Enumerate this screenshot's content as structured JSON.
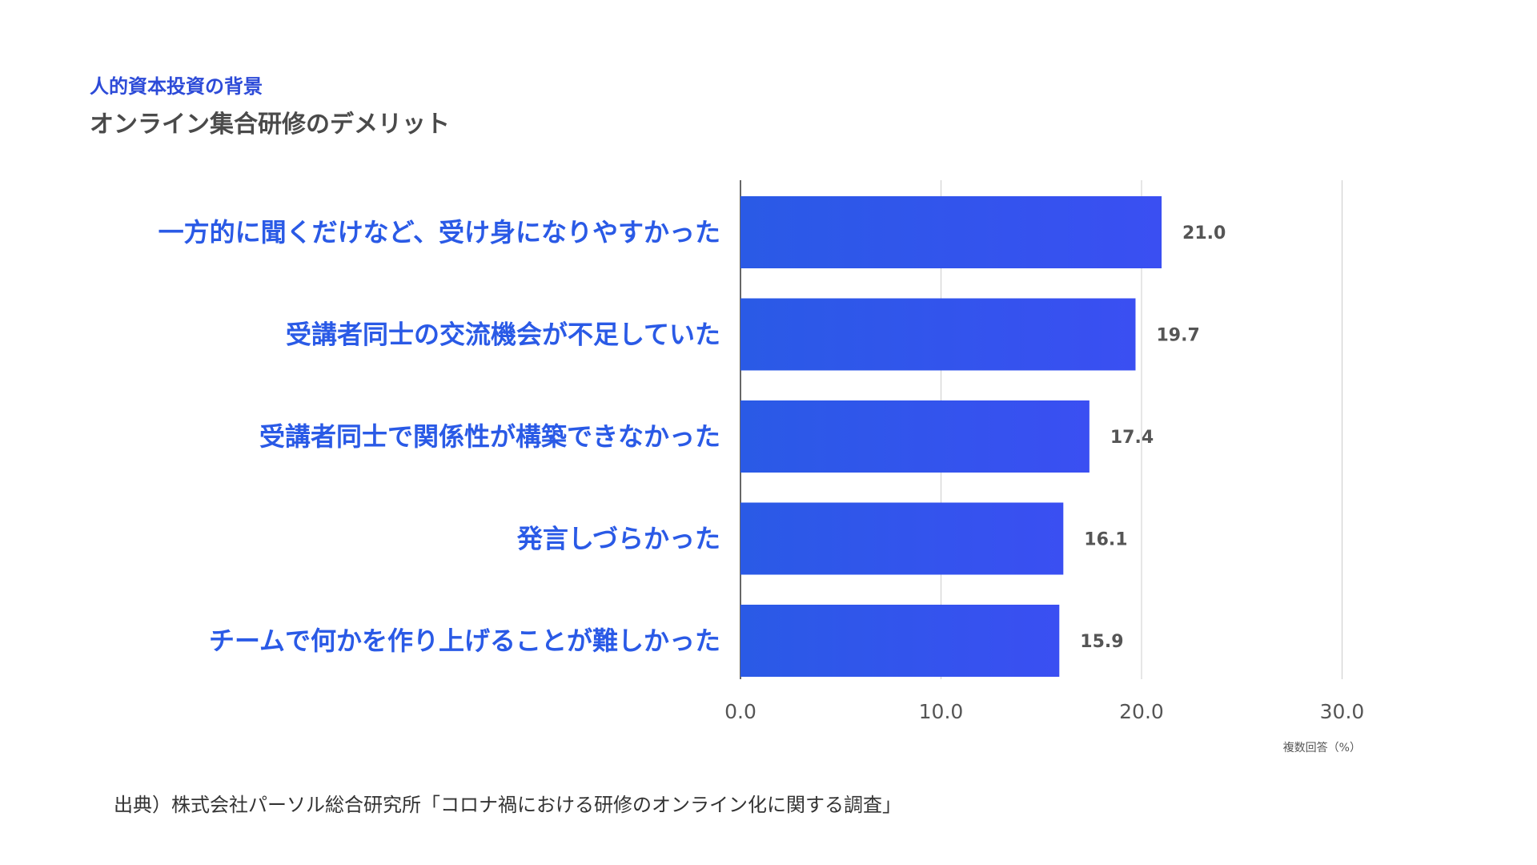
{
  "header": {
    "eyebrow": "人的資本投資の背景",
    "title": "オンライン集合研修のデメリット"
  },
  "colors": {
    "bar_start": "#2a5ae6",
    "bar_end": "#3a4ff2",
    "category_label": "#2a5ae6",
    "grid": "#cccccc",
    "axis": "#333333"
  },
  "chart_data": {
    "type": "bar",
    "orientation": "horizontal",
    "categories": [
      "一方的に聞くだけなど、受け身になりやすかった",
      "受講者同士の交流機会が不足していた",
      "受講者同士で関係性が構築できなかった",
      "発言しづらかった",
      "チームで何かを作り上げることが難しかった"
    ],
    "values": [
      21.0,
      19.7,
      17.4,
      16.1,
      15.9
    ],
    "value_labels": [
      "21.0",
      "19.7",
      "17.4",
      "16.1",
      "15.9"
    ],
    "xlim": [
      0,
      30
    ],
    "ticks": [
      "0.0",
      "10.0",
      "20.0",
      "30.0"
    ],
    "tick_values": [
      0,
      10,
      20,
      30
    ],
    "axis_note": "複数回答（%）",
    "grid": true
  },
  "footer": {
    "source": "出典）株式会社パーソル総合研究所「コロナ禍における研修のオンライン化に関する調査」"
  }
}
